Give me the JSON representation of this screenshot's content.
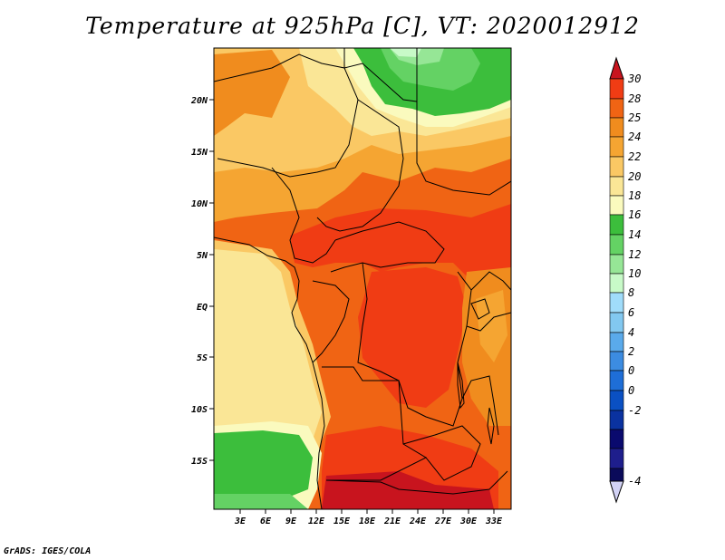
{
  "title": "Temperature at 925hPa [C], VT: 2020012912",
  "credit": "GrADS: IGES/COLA",
  "map": {
    "lon_range": [
      0,
      35
    ],
    "lat_range": [
      -20,
      25
    ],
    "x_ticks": [
      "3E",
      "6E",
      "9E",
      "12E",
      "15E",
      "18E",
      "21E",
      "24E",
      "27E",
      "30E",
      "33E"
    ],
    "y_ticks": [
      "20N",
      "15N",
      "10N",
      "5N",
      "EQ",
      "5S",
      "10S",
      "15S"
    ]
  },
  "colorbar": {
    "labels": [
      "30",
      "28",
      "25",
      "24",
      "22",
      "20",
      "18",
      "16",
      "14",
      "12",
      "10",
      "8",
      "6",
      "4",
      "2",
      "0",
      "-2",
      "-4"
    ],
    "colors": [
      "#c8141e",
      "#f03c14",
      "#f06414",
      "#f08c1e",
      "#f5a532",
      "#fac864",
      "#fae696",
      "#fafabe",
      "#3cbe3c",
      "#64d264",
      "#96e696",
      "#c8fac8",
      "#a0dcfa",
      "#82c8f0",
      "#5aaaeb",
      "#3c8ce1",
      "#1e6ed7",
      "#0a50c3",
      "#0a32a0",
      "#0a0a6e",
      "#d2d2f5"
    ]
  }
}
